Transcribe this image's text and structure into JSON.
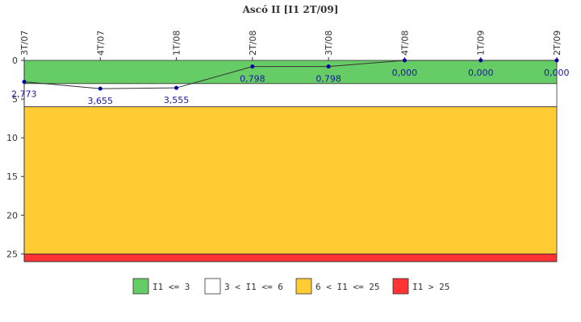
{
  "chart_data": {
    "type": "line",
    "title": "Ascó II [I1 2T/09]",
    "xlabel": "",
    "ylabel": "",
    "categories": [
      "3T/07",
      "4T/07",
      "1T/08",
      "2T/08",
      "3T/08",
      "4T/08",
      "1T/09",
      "2T/09"
    ],
    "series": [
      {
        "values": [
          2.773,
          3.655,
          3.555,
          0.798,
          0.798,
          0.0,
          0.0,
          0.0
        ],
        "labels": [
          "2,773",
          "3,655",
          "3,555",
          "0,798",
          "0,798",
          "0,000",
          "0,000",
          "0,000"
        ],
        "color": "#000099"
      }
    ],
    "ylim": [
      0,
      26
    ],
    "y_inverted": true,
    "y_ticks": [
      0,
      5,
      10,
      15,
      20,
      25
    ],
    "x_tick_rotation": -90,
    "grid": false,
    "bands": [
      {
        "from": 0,
        "to": 3,
        "color": "#66cc66"
      },
      {
        "from": 3,
        "to": 6,
        "color": "#ffffff"
      },
      {
        "from": 6,
        "to": 25,
        "color": "#ffcc33"
      },
      {
        "from": 25,
        "to": 26,
        "color": "#ff3333"
      }
    ],
    "legend": {
      "position": "bottom",
      "items": [
        {
          "label": "I1 <= 3",
          "color": "#66cc66"
        },
        {
          "label": "3 < I1 <= 6",
          "color": "#ffffff"
        },
        {
          "label": "6 < I1 <= 25",
          "color": "#ffcc33"
        },
        {
          "label": "I1 > 25",
          "color": "#ff3333"
        }
      ]
    }
  }
}
